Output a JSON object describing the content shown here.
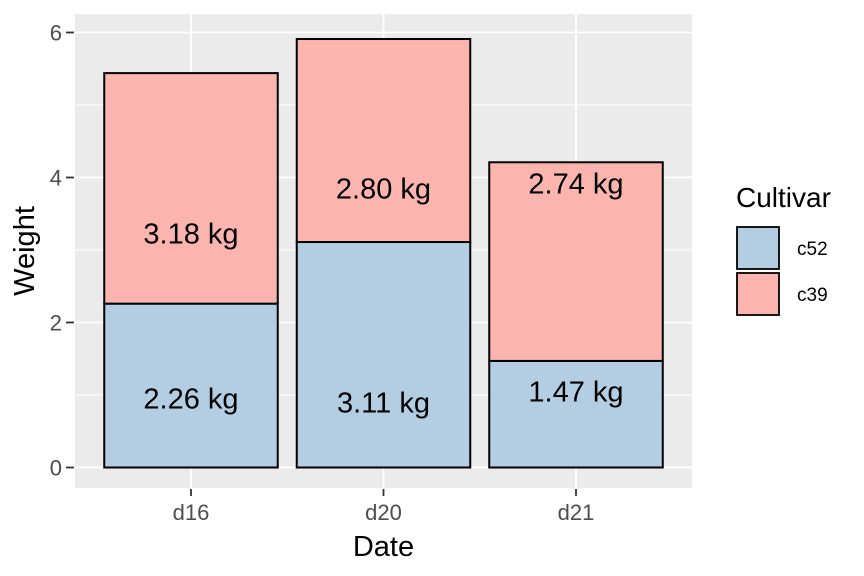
{
  "chart_data": {
    "type": "bar",
    "stacked": true,
    "title": "",
    "xlabel": "Date",
    "ylabel": "Weight",
    "categories": [
      "d16",
      "d20",
      "d21"
    ],
    "series": [
      {
        "name": "c52",
        "color": "#B3CDE3",
        "values": [
          2.26,
          3.11,
          1.47
        ],
        "bar_labels": [
          "2.26 kg",
          "3.11 kg",
          "1.47 kg"
        ],
        "label_y": [
          0.95,
          0.9,
          1.05
        ]
      },
      {
        "name": "c39",
        "color": "#FBB4AE",
        "values": [
          3.18,
          2.8,
          2.74
        ],
        "bar_labels": [
          "3.18 kg",
          "2.80 kg",
          "2.74 kg"
        ],
        "label_y": [
          3.23,
          3.85,
          3.92
        ]
      }
    ],
    "stack_order_bottom_to_top": [
      "c52",
      "c39"
    ],
    "y_ticks": [
      0,
      2,
      4,
      6
    ],
    "y_minor_ticks": [
      1,
      3,
      5
    ],
    "ylim": [
      -0.3,
      6.25
    ],
    "grid": true,
    "legend": {
      "title": "Cultivar",
      "position": "right",
      "entries": [
        {
          "label": "c52",
          "color": "#B3CDE3"
        },
        {
          "label": "c39",
          "color": "#FBB4AE"
        }
      ]
    },
    "style": {
      "background": "#FFFFFF",
      "panel_bg": "#EBEBEB",
      "grid_color": "#FFFFFF",
      "bar_border": "#000000",
      "label_color": "#000000",
      "axis_title_color": "#000000",
      "tick_label_color": "#4D4D4D",
      "tick_mark_color": "#333333"
    }
  }
}
